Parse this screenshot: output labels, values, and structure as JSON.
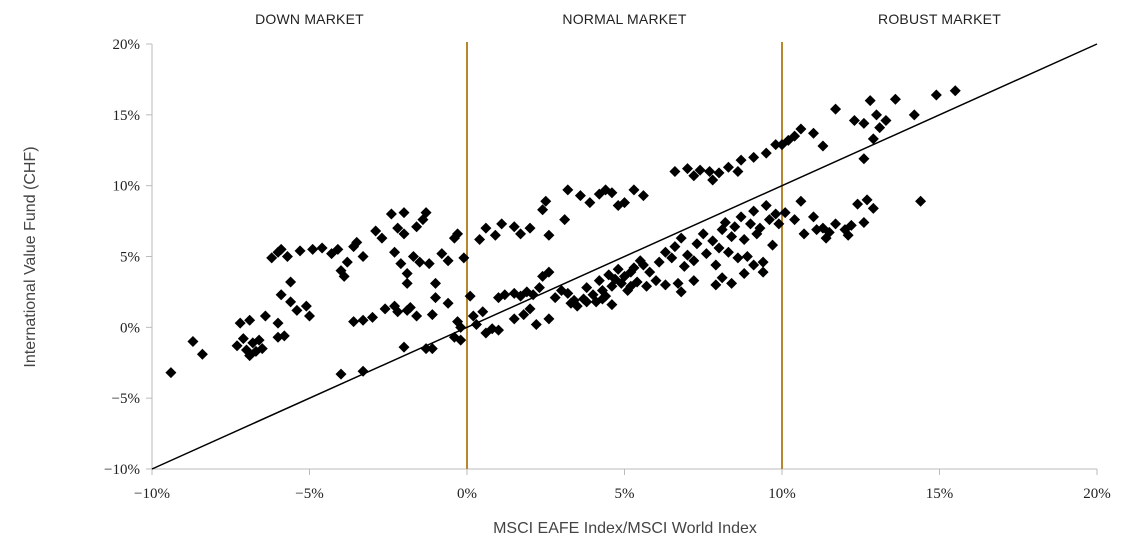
{
  "chart_data": {
    "type": "scatter",
    "title": "",
    "xlabel": "MSCI EAFE Index/MSCI World Index",
    "ylabel": "International Value Fund (CHF)",
    "xlim": [
      -10,
      20
    ],
    "ylim": [
      -10,
      20
    ],
    "x_ticks": [
      {
        "value": -10,
        "label": "−10%"
      },
      {
        "value": -5,
        "label": "−5%"
      },
      {
        "value": 0,
        "label": "0%"
      },
      {
        "value": 5,
        "label": "5%"
      },
      {
        "value": 10,
        "label": "10%"
      },
      {
        "value": 15,
        "label": "15%"
      },
      {
        "value": 20,
        "label": "20%"
      }
    ],
    "y_ticks": [
      {
        "value": 20,
        "label": "20%"
      },
      {
        "value": 15,
        "label": "15%"
      },
      {
        "value": 10,
        "label": "10%"
      },
      {
        "value": 5,
        "label": "5%"
      },
      {
        "value": 0,
        "label": "0%"
      },
      {
        "value": -5,
        "label": "−5%"
      },
      {
        "value": -10,
        "label": "−10%"
      }
    ],
    "regions": [
      {
        "label": "DOWN MARKET",
        "x_center": -5
      },
      {
        "label": "NORMAL MARKET",
        "x_center": 5
      },
      {
        "label": "ROBUST MARKET",
        "x_center": 15
      }
    ],
    "region_dividers": [
      0,
      10
    ],
    "reference_line": {
      "from": [
        -10,
        -10
      ],
      "to": [
        20,
        20
      ]
    },
    "grid": false,
    "legend": "none",
    "colors": {
      "points": "#000000",
      "dividers": "#b8862e",
      "line": "#000000",
      "axis": "#bbbbbb"
    },
    "points": [
      [
        -9.4,
        -3.2
      ],
      [
        -8.7,
        -1.0
      ],
      [
        -8.4,
        -1.9
      ],
      [
        -7.3,
        -1.3
      ],
      [
        -7.1,
        -0.8
      ],
      [
        -7.0,
        -1.6
      ],
      [
        -6.9,
        -2.0
      ],
      [
        -6.8,
        -1.1
      ],
      [
        -6.7,
        -1.7
      ],
      [
        -6.6,
        -0.9
      ],
      [
        -6.5,
        -1.5
      ],
      [
        -7.2,
        0.3
      ],
      [
        -6.9,
        0.5
      ],
      [
        -6.4,
        0.8
      ],
      [
        -6.0,
        -0.7
      ],
      [
        -5.8,
        -0.6
      ],
      [
        -6.0,
        0.3
      ],
      [
        -5.6,
        1.8
      ],
      [
        -5.9,
        2.3
      ],
      [
        -5.4,
        1.2
      ],
      [
        -5.1,
        1.5
      ],
      [
        -5.0,
        0.8
      ],
      [
        -6.2,
        4.9
      ],
      [
        -6.0,
        5.3
      ],
      [
        -5.9,
        5.5
      ],
      [
        -5.7,
        5.0
      ],
      [
        -5.6,
        3.2
      ],
      [
        -5.3,
        5.4
      ],
      [
        -4.9,
        5.5
      ],
      [
        -4.6,
        5.6
      ],
      [
        -4.3,
        5.2
      ],
      [
        -4.1,
        5.5
      ],
      [
        -4.0,
        4.0
      ],
      [
        -3.9,
        3.6
      ],
      [
        -3.8,
        4.6
      ],
      [
        -3.6,
        5.7
      ],
      [
        -3.5,
        6.0
      ],
      [
        -3.3,
        5.0
      ],
      [
        -2.9,
        6.8
      ],
      [
        -2.7,
        6.3
      ],
      [
        -2.4,
        8.0
      ],
      [
        -2.0,
        8.1
      ],
      [
        -2.2,
        7.0
      ],
      [
        -2.0,
        6.6
      ],
      [
        -1.6,
        7.1
      ],
      [
        -1.4,
        7.6
      ],
      [
        -1.3,
        8.1
      ],
      [
        -2.3,
        5.3
      ],
      [
        -2.1,
        4.5
      ],
      [
        -1.9,
        3.8
      ],
      [
        -1.7,
        5.0
      ],
      [
        -1.5,
        4.6
      ],
      [
        -1.9,
        3.1
      ],
      [
        -1.2,
        4.5
      ],
      [
        -1.0,
        3.1
      ],
      [
        -0.8,
        5.2
      ],
      [
        -0.6,
        4.7
      ],
      [
        -0.4,
        6.3
      ],
      [
        -0.3,
        6.6
      ],
      [
        -0.1,
        4.9
      ],
      [
        -3.6,
        0.4
      ],
      [
        -3.3,
        0.5
      ],
      [
        -3.0,
        0.7
      ],
      [
        -2.6,
        1.3
      ],
      [
        -2.3,
        1.5
      ],
      [
        -2.2,
        1.1
      ],
      [
        -1.9,
        1.2
      ],
      [
        -1.6,
        0.8
      ],
      [
        -1.8,
        1.4
      ],
      [
        -1.1,
        0.9
      ],
      [
        -1.0,
        2.1
      ],
      [
        -0.6,
        1.7
      ],
      [
        -0.3,
        0.4
      ],
      [
        -0.2,
        0.0
      ],
      [
        -2.0,
        -1.4
      ],
      [
        -1.3,
        -1.5
      ],
      [
        -1.1,
        -1.5
      ],
      [
        -0.4,
        -0.7
      ],
      [
        -0.2,
        -0.9
      ],
      [
        -4.0,
        -3.3
      ],
      [
        -3.3,
        -3.1
      ],
      [
        0.1,
        2.2
      ],
      [
        0.2,
        0.8
      ],
      [
        0.3,
        0.2
      ],
      [
        0.5,
        1.1
      ],
      [
        0.6,
        -0.4
      ],
      [
        0.8,
        -0.1
      ],
      [
        1.0,
        -0.2
      ],
      [
        0.4,
        6.2
      ],
      [
        0.6,
        7.0
      ],
      [
        0.9,
        6.5
      ],
      [
        1.1,
        7.3
      ],
      [
        1.5,
        7.1
      ],
      [
        1.7,
        6.6
      ],
      [
        2.0,
        7.0
      ],
      [
        2.4,
        8.3
      ],
      [
        2.5,
        8.9
      ],
      [
        2.6,
        6.5
      ],
      [
        3.1,
        7.6
      ],
      [
        3.2,
        9.7
      ],
      [
        3.6,
        9.3
      ],
      [
        3.9,
        8.8
      ],
      [
        4.2,
        9.4
      ],
      [
        4.4,
        9.7
      ],
      [
        4.6,
        9.5
      ],
      [
        4.8,
        8.6
      ],
      [
        5.0,
        8.8
      ],
      [
        5.3,
        9.7
      ],
      [
        5.6,
        9.3
      ],
      [
        1.0,
        2.1
      ],
      [
        1.2,
        2.3
      ],
      [
        1.5,
        2.4
      ],
      [
        1.7,
        2.2
      ],
      [
        1.9,
        2.5
      ],
      [
        2.0,
        1.3
      ],
      [
        2.1,
        2.3
      ],
      [
        2.3,
        2.8
      ],
      [
        2.4,
        3.6
      ],
      [
        2.6,
        3.9
      ],
      [
        2.8,
        2.1
      ],
      [
        3.0,
        2.6
      ],
      [
        3.2,
        2.4
      ],
      [
        3.4,
        1.9
      ],
      [
        3.5,
        1.5
      ],
      [
        3.7,
        2.0
      ],
      [
        3.8,
        2.8
      ],
      [
        4.0,
        2.3
      ],
      [
        4.1,
        1.8
      ],
      [
        4.2,
        3.3
      ],
      [
        4.3,
        2.6
      ],
      [
        4.4,
        2.2
      ],
      [
        4.5,
        3.7
      ],
      [
        4.6,
        2.9
      ],
      [
        4.7,
        3.4
      ],
      [
        4.8,
        4.1
      ],
      [
        4.9,
        3.1
      ],
      [
        5.0,
        3.6
      ],
      [
        5.1,
        2.6
      ],
      [
        5.2,
        3.9
      ],
      [
        5.3,
        4.2
      ],
      [
        5.4,
        3.2
      ],
      [
        5.5,
        4.7
      ],
      [
        5.6,
        4.4
      ],
      [
        5.8,
        3.9
      ],
      [
        6.0,
        3.3
      ],
      [
        6.1,
        4.6
      ],
      [
        6.3,
        5.3
      ],
      [
        6.5,
        4.9
      ],
      [
        6.6,
        5.7
      ],
      [
        6.8,
        6.3
      ],
      [
        6.9,
        4.3
      ],
      [
        7.0,
        5.1
      ],
      [
        7.2,
        4.7
      ],
      [
        7.3,
        5.9
      ],
      [
        7.5,
        6.6
      ],
      [
        7.6,
        5.2
      ],
      [
        7.8,
        6.1
      ],
      [
        7.9,
        4.4
      ],
      [
        8.0,
        5.6
      ],
      [
        8.1,
        6.9
      ],
      [
        8.2,
        7.4
      ],
      [
        8.3,
        5.3
      ],
      [
        8.4,
        6.4
      ],
      [
        8.5,
        7.1
      ],
      [
        8.6,
        4.9
      ],
      [
        8.7,
        7.8
      ],
      [
        8.8,
        6.2
      ],
      [
        8.9,
        5.0
      ],
      [
        9.0,
        7.3
      ],
      [
        9.1,
        8.2
      ],
      [
        9.2,
        6.6
      ],
      [
        9.3,
        7.0
      ],
      [
        9.4,
        4.6
      ],
      [
        9.5,
        8.6
      ],
      [
        9.6,
        7.6
      ],
      [
        9.7,
        5.8
      ],
      [
        9.8,
        8.0
      ],
      [
        1.5,
        0.6
      ],
      [
        1.8,
        0.9
      ],
      [
        2.2,
        0.2
      ],
      [
        2.6,
        0.6
      ],
      [
        3.3,
        1.7
      ],
      [
        3.8,
        1.8
      ],
      [
        4.3,
        2.0
      ],
      [
        4.6,
        1.6
      ],
      [
        5.2,
        2.9
      ],
      [
        5.7,
        2.9
      ],
      [
        6.3,
        3.0
      ],
      [
        6.7,
        3.1
      ],
      [
        6.8,
        2.5
      ],
      [
        7.2,
        3.3
      ],
      [
        7.9,
        3.0
      ],
      [
        8.1,
        3.5
      ],
      [
        8.4,
        3.1
      ],
      [
        8.8,
        3.8
      ],
      [
        9.1,
        4.4
      ],
      [
        9.4,
        3.9
      ],
      [
        6.6,
        11.0
      ],
      [
        7.0,
        11.2
      ],
      [
        7.2,
        10.7
      ],
      [
        7.4,
        11.1
      ],
      [
        7.7,
        11.0
      ],
      [
        7.8,
        10.4
      ],
      [
        8.0,
        10.9
      ],
      [
        8.3,
        11.3
      ],
      [
        8.6,
        11.0
      ],
      [
        8.7,
        11.8
      ],
      [
        9.1,
        12.0
      ],
      [
        9.5,
        12.3
      ],
      [
        9.8,
        12.9
      ],
      [
        10.0,
        12.9
      ],
      [
        10.2,
        13.2
      ],
      [
        10.4,
        13.5
      ],
      [
        10.6,
        14.0
      ],
      [
        11.0,
        13.7
      ],
      [
        11.3,
        12.8
      ],
      [
        9.9,
        7.3
      ],
      [
        10.1,
        8.1
      ],
      [
        10.4,
        7.6
      ],
      [
        10.6,
        8.9
      ],
      [
        10.7,
        6.6
      ],
      [
        11.1,
        6.9
      ],
      [
        11.3,
        7.0
      ],
      [
        11.5,
        6.7
      ],
      [
        11.7,
        7.3
      ],
      [
        12.0,
        6.9
      ],
      [
        12.2,
        7.2
      ],
      [
        12.6,
        7.4
      ],
      [
        12.9,
        8.4
      ],
      [
        11.0,
        7.8
      ],
      [
        11.4,
        6.3
      ],
      [
        12.1,
        6.5
      ],
      [
        12.4,
        8.7
      ],
      [
        12.7,
        9.0
      ],
      [
        12.6,
        11.9
      ],
      [
        12.9,
        13.3
      ],
      [
        13.1,
        14.1
      ],
      [
        13.3,
        14.6
      ],
      [
        13.0,
        15.0
      ],
      [
        12.8,
        16.0
      ],
      [
        12.6,
        14.4
      ],
      [
        13.6,
        16.1
      ],
      [
        14.2,
        15.0
      ],
      [
        14.9,
        16.4
      ],
      [
        15.5,
        16.7
      ],
      [
        14.4,
        8.9
      ],
      [
        12.3,
        14.6
      ],
      [
        11.7,
        15.4
      ]
    ]
  }
}
